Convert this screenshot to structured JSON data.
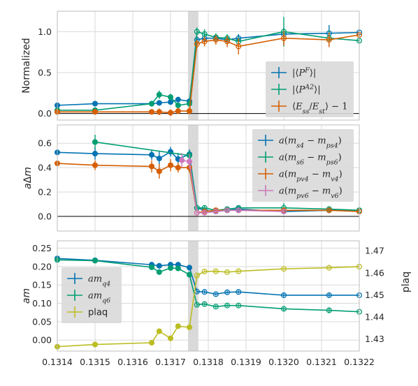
{
  "colors": {
    "blue": "#0173b2",
    "green": "#029e73",
    "orange": "#d55e00",
    "pink": "#cc78bc",
    "olive": "#bcbd22",
    "grid": "#d9d9d9",
    "band": "#d9d9d9"
  },
  "chart_data": [
    {
      "type": "line",
      "ylabel": "Normalized",
      "xlim": [
        0.1314,
        0.1322
      ],
      "ylim": [
        -0.08,
        1.25
      ],
      "yticks": [
        "0.0",
        "0.5",
        "1.0"
      ],
      "legend": "lower-right",
      "shaded_x": [
        0.13175,
        0.13177
      ],
      "hline_y": 0,
      "series": [
        {
          "name": "|⟨P^F⟩|",
          "color_key": "blue",
          "x": [
            0.1314,
            0.1315,
            0.13165,
            0.13167,
            0.1317,
            0.13172,
            0.13175,
            0.13177,
            0.13179,
            0.13182,
            0.13185,
            0.13188,
            0.132,
            0.13212,
            0.1322
          ],
          "y": [
            0.1,
            0.12,
            0.12,
            0.13,
            0.14,
            0.17,
            0.15,
            0.9,
            0.92,
            0.92,
            0.9,
            0.92,
            0.97,
            0.98,
            0.99
          ],
          "err": [
            0,
            0.02,
            0.02,
            0.02,
            0.02,
            0.03,
            0.03,
            0.04,
            0.05,
            0.04,
            0.04,
            0.05,
            0.08,
            0.1,
            0.04
          ],
          "open_from": 0.13177
        },
        {
          "name": "|⟨P^{A2}⟩|",
          "color_key": "green",
          "x": [
            0.1314,
            0.1315,
            0.13165,
            0.13167,
            0.1317,
            0.13172,
            0.13175,
            0.13177,
            0.13179,
            0.13182,
            0.13185,
            0.13188,
            0.132,
            0.13212,
            0.1322
          ],
          "y": [
            0.04,
            0.04,
            0.12,
            0.23,
            0.2,
            0.1,
            0.12,
            1.0,
            0.97,
            0.93,
            0.92,
            0.88,
            1.0,
            0.92,
            0.89
          ],
          "err": [
            0,
            0.02,
            0.03,
            0.05,
            0.04,
            0.03,
            0.03,
            0.05,
            0.06,
            0.05,
            0.05,
            0.06,
            0.18,
            0.1,
            0.04
          ],
          "open_from": 0.13177
        },
        {
          "name": "⟨E_ss/E_st⟩ − 1",
          "color_key": "orange",
          "x": [
            0.1314,
            0.1315,
            0.13165,
            0.13167,
            0.1317,
            0.13172,
            0.13175,
            0.13177,
            0.13179,
            0.13182,
            0.13185,
            0.13188,
            0.132,
            0.13212,
            0.1322
          ],
          "y": [
            0.02,
            0.02,
            0.02,
            0.02,
            0.01,
            0.03,
            0.03,
            0.85,
            0.88,
            0.9,
            0.88,
            0.82,
            0.92,
            0.9,
            0.96
          ],
          "err": [
            0,
            0.02,
            0.02,
            0.04,
            0.04,
            0.03,
            0.04,
            0.05,
            0.06,
            0.06,
            0.07,
            0.1,
            0.09,
            0.09,
            0.04
          ],
          "open_from": 0.13177
        }
      ]
    },
    {
      "type": "line",
      "ylabel": "aΔm",
      "xlim": [
        0.1314,
        0.1322
      ],
      "ylim": [
        -0.12,
        0.75
      ],
      "yticks": [
        "0.0",
        "0.2",
        "0.4",
        "0.6"
      ],
      "legend": "top-right",
      "shaded_x": [
        0.13175,
        0.13177
      ],
      "hline_y": 0,
      "series": [
        {
          "name": "a(m_s4 − m_ps4)",
          "color_key": "blue",
          "x": [
            0.1314,
            0.1315,
            0.13165,
            0.13167,
            0.1317,
            0.13172,
            0.13175,
            0.13177,
            0.13179,
            0.13182,
            0.13185,
            0.13188,
            0.132,
            0.13212,
            0.1322
          ],
          "y": [
            0.525,
            0.515,
            0.505,
            0.475,
            0.53,
            0.47,
            0.51,
            0.07,
            0.05,
            0.04,
            0.05,
            0.06,
            0.04,
            0.05,
            0.05
          ],
          "err": [
            0,
            0.05,
            0.04,
            0.06,
            0.04,
            0.05,
            0.04,
            0.01,
            0.02,
            0.02,
            0.02,
            0.02,
            0.02,
            0.02,
            0.01
          ],
          "open_from": 0.13177
        },
        {
          "name": "a(m_s6 − m_ps6)",
          "color_key": "green",
          "x": [
            0.1315,
            0.13175,
            0.13177,
            0.13179,
            0.13182,
            0.13185,
            0.13188,
            0.132,
            0.13212,
            0.1322
          ],
          "y": [
            0.61,
            0.5,
            0.07,
            0.07,
            0.05,
            0.06,
            0.07,
            0.07,
            0.06,
            0.05
          ],
          "err": [
            0.06,
            0.04,
            0.01,
            0.02,
            0.02,
            0.02,
            0.02,
            0.04,
            0.02,
            0.01
          ],
          "open_from": 0.13177
        },
        {
          "name": "a(m_pv4 − m_v4)",
          "color_key": "orange",
          "x": [
            0.1314,
            0.1315,
            0.13165,
            0.13167,
            0.1317,
            0.13172,
            0.13175,
            0.13177,
            0.13179,
            0.13182,
            0.13185,
            0.13188,
            0.132,
            0.13212,
            0.1322
          ],
          "y": [
            0.435,
            0.42,
            0.41,
            0.37,
            0.42,
            0.4,
            0.4,
            0.03,
            0.04,
            0.05,
            0.05,
            0.05,
            0.05,
            0.05,
            0.04
          ],
          "err": [
            0,
            0.04,
            0.05,
            0.06,
            0.05,
            0.04,
            0.04,
            0.01,
            0.02,
            0.02,
            0.02,
            0.02,
            0.02,
            0.02,
            0.01
          ],
          "open_from": 0.13177
        },
        {
          "name": "a(m_pv6 − m_v6)",
          "color_key": "pink",
          "x": [
            0.13173,
            0.13175,
            0.13177,
            0.13179,
            0.13182,
            0.13185,
            0.13188,
            0.132
          ],
          "y": [
            0.46,
            0.45,
            0.03,
            0.03,
            0.04,
            0.05,
            0.05,
            0.04
          ],
          "err": [
            0.06,
            0.06,
            0.01,
            0.02,
            0.02,
            0.02,
            0.02,
            0.02
          ],
          "open_from": 0.13177
        }
      ]
    },
    {
      "type": "line",
      "ylabel": "am",
      "y2label": "plaq",
      "xlim": [
        0.1314,
        0.1322
      ],
      "ylim": [
        -0.03,
        0.27
      ],
      "y2lim": [
        1.4245,
        1.4745
      ],
      "yticks": [
        "0.00",
        "0.05",
        "0.10",
        "0.15",
        "0.20",
        "0.25"
      ],
      "y2ticks": [
        "1.43",
        "1.44",
        "1.45",
        "1.46",
        "1.47"
      ],
      "xticks": [
        "0.1314",
        "0.1315",
        "0.1316",
        "0.1317",
        "0.1318",
        "0.1319",
        "0.1320",
        "0.1321",
        "0.1322"
      ],
      "legend": "center-left",
      "shaded_x": [
        0.13175,
        0.13177
      ],
      "series": [
        {
          "name": "am_q4",
          "color_key": "blue",
          "x": [
            0.1314,
            0.1315,
            0.13165,
            0.13167,
            0.1317,
            0.13172,
            0.13175,
            0.13177,
            0.13179,
            0.13182,
            0.13185,
            0.13188,
            0.132,
            0.13212,
            0.1322
          ],
          "y": [
            0.222,
            0.217,
            0.205,
            0.202,
            0.205,
            0.205,
            0.197,
            0.132,
            0.131,
            0.125,
            0.13,
            0.131,
            0.122,
            0.122,
            0.122
          ],
          "err": [
            0,
            0.003,
            0.003,
            0.003,
            0.003,
            0.003,
            0.003,
            0.004,
            0.004,
            0.004,
            0.004,
            0.004,
            0.005,
            0.005,
            0.002
          ],
          "open_from": 0.13177
        },
        {
          "name": "am_q6",
          "color_key": "green",
          "x": [
            0.1314,
            0.1315,
            0.13165,
            0.13167,
            0.1317,
            0.13172,
            0.13175,
            0.13177,
            0.13179,
            0.13182,
            0.13185,
            0.13188,
            0.132,
            0.13212,
            0.1322
          ],
          "y": [
            0.218,
            0.216,
            0.198,
            0.185,
            0.196,
            0.195,
            0.178,
            0.096,
            0.098,
            0.091,
            0.094,
            0.094,
            0.085,
            0.081,
            0.077
          ],
          "err": [
            0,
            0.003,
            0.003,
            0.004,
            0.003,
            0.004,
            0.004,
            0.004,
            0.004,
            0.004,
            0.004,
            0.004,
            0.005,
            0.008,
            0.002
          ],
          "open_from": 0.13177
        },
        {
          "name": "plaq",
          "color_key": "olive",
          "axis": "right",
          "x": [
            0.1314,
            0.1315,
            0.13165,
            0.13167,
            0.1317,
            0.13172,
            0.13175,
            0.13177,
            0.13179,
            0.13182,
            0.13185,
            0.13188,
            0.132,
            0.13212,
            0.1322
          ],
          "y": [
            1.4265,
            1.4275,
            1.4283,
            1.4335,
            1.4303,
            1.4358,
            1.4353,
            1.4588,
            1.4606,
            1.4607,
            1.4603,
            1.4607,
            1.4618,
            1.4623,
            1.4628
          ],
          "err": [
            0,
            0.0003,
            0.0003,
            0.0004,
            0.0004,
            0.0004,
            0.0004,
            0.0005,
            0.0005,
            0.0005,
            0.0005,
            0.0005,
            0.0005,
            0.0005,
            0.0003
          ],
          "open_from": 0.13177
        }
      ]
    }
  ]
}
